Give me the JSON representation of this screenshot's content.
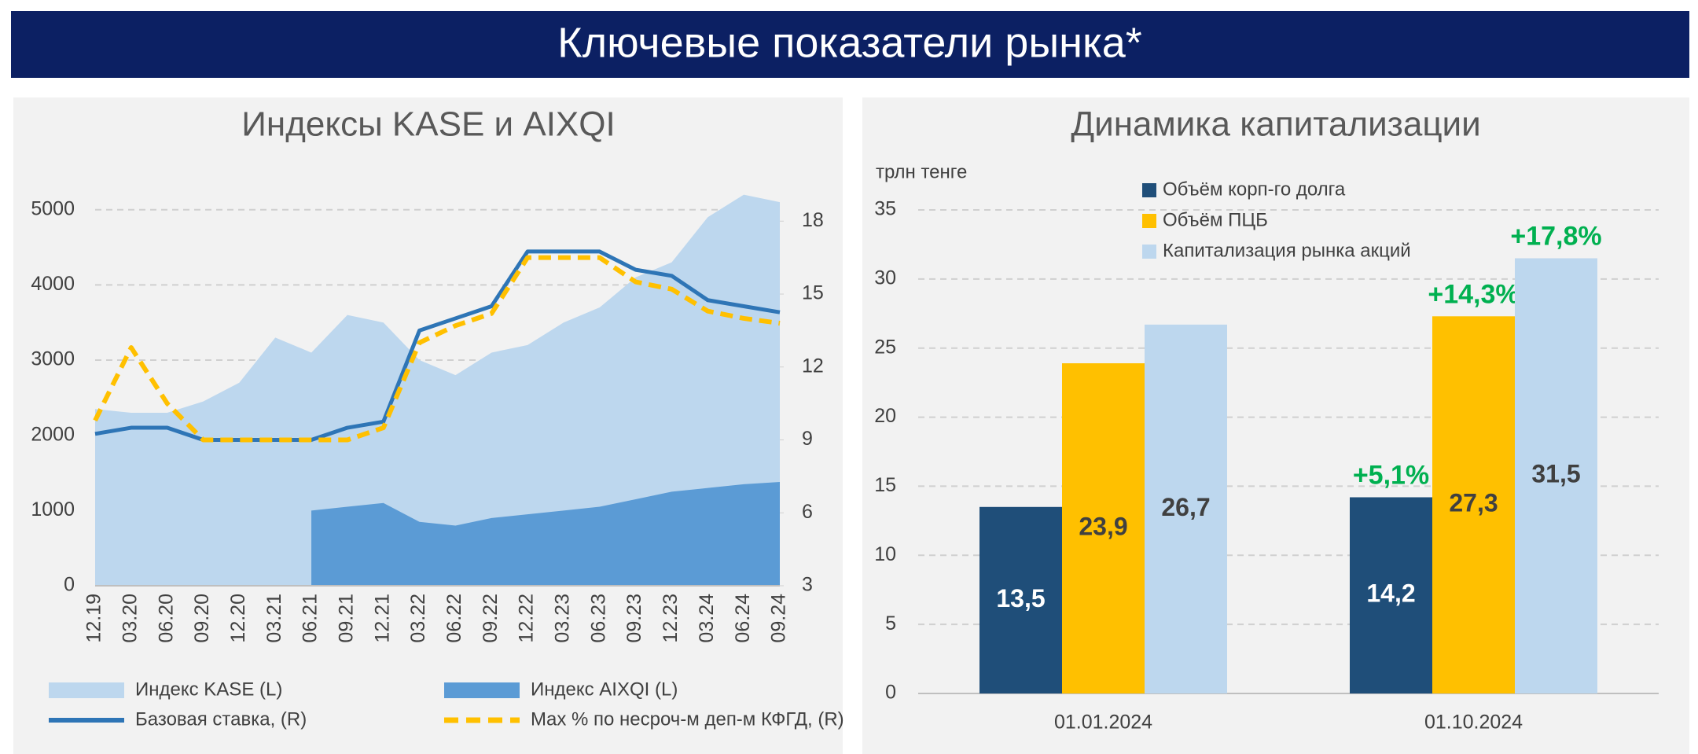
{
  "header": {
    "title": "Ключевые показатели рынка*"
  },
  "chart_data": [
    {
      "type": "area",
      "title": "Индексы KASE и AIXQI",
      "categories": [
        "12.19",
        "03.20",
        "06.20",
        "09.20",
        "12.20",
        "03.21",
        "06.21",
        "09.21",
        "12.21",
        "03.22",
        "06.22",
        "09.22",
        "12.22",
        "03.23",
        "06.23",
        "09.23",
        "12.23",
        "03.24",
        "06.24",
        "09.24"
      ],
      "series": [
        {
          "name": "Индекс KASE (L)",
          "kind": "area",
          "color": "#bdd7ee",
          "values": [
            2350,
            2300,
            2300,
            2450,
            2700,
            3300,
            3100,
            3600,
            3500,
            3000,
            2800,
            3100,
            3200,
            3500,
            3700,
            4100,
            4300,
            4900,
            5200,
            5100
          ]
        },
        {
          "name": "Индекс AIXQI (L)",
          "kind": "area",
          "color": "#5b9bd5",
          "values": [
            null,
            null,
            null,
            null,
            null,
            null,
            1000,
            1050,
            1100,
            850,
            800,
            900,
            950,
            1000,
            1050,
            1150,
            1250,
            1300,
            1350,
            1380
          ]
        },
        {
          "name": "Базовая ставка, (R)",
          "kind": "line",
          "axis": "y2",
          "color": "#2e75b6",
          "dash": false,
          "values": [
            9.25,
            9.5,
            9.5,
            9,
            9,
            9,
            9,
            9.5,
            9.75,
            13.5,
            14,
            14.5,
            16.75,
            16.75,
            16.75,
            16,
            15.75,
            14.75,
            14.5,
            14.25
          ]
        },
        {
          "name": "Max % по несроч-м деп-м КФГД, (R)",
          "kind": "line",
          "axis": "y2",
          "color": "#ffc000",
          "dash": true,
          "values": [
            9.8,
            12.8,
            10.5,
            9,
            9,
            9,
            9,
            9,
            9.5,
            13,
            13.7,
            14.2,
            16.5,
            16.5,
            16.5,
            15.5,
            15.2,
            14.3,
            14,
            13.8
          ]
        }
      ],
      "ylim": [
        0,
        5300
      ],
      "yticks": [
        0,
        1000,
        2000,
        3000,
        4000,
        5000
      ],
      "y2lim": [
        3,
        19.4
      ],
      "y2ticks": [
        3,
        6,
        9,
        12,
        15,
        18
      ],
      "grid": true
    },
    {
      "type": "bar",
      "title": "Динамика капитализации",
      "y_label": "трлн тенге",
      "categories": [
        "01.01.2024",
        "01.10.2024"
      ],
      "series": [
        {
          "name": "Объём корп-го долга",
          "color": "#1f4e79",
          "values": [
            13.5,
            14.2
          ],
          "value_labels": [
            "13,5",
            "14,2"
          ],
          "change_labels": [
            null,
            "+5,1%"
          ]
        },
        {
          "name": "Объём ПЦБ",
          "color": "#ffc000",
          "values": [
            23.9,
            27.3
          ],
          "value_labels": [
            "23,9",
            "27,3"
          ],
          "change_labels": [
            null,
            "+14,3%"
          ]
        },
        {
          "name": "Капитализация рынка акций",
          "color": "#bdd7ee",
          "values": [
            26.7,
            31.5
          ],
          "value_labels": [
            "26,7",
            "31,5"
          ],
          "change_labels": [
            null,
            "+17,8%"
          ]
        }
      ],
      "ylim": [
        0,
        35
      ],
      "yticks": [
        0,
        5,
        10,
        15,
        20,
        25,
        30,
        35
      ],
      "grid": true
    }
  ]
}
